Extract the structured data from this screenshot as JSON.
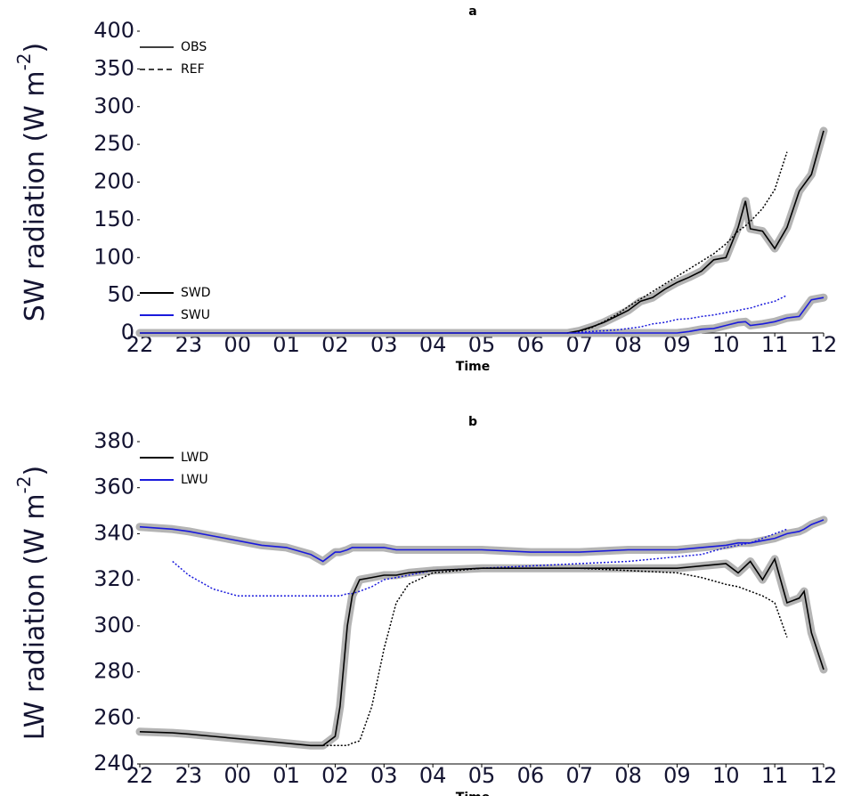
{
  "chart_data": [
    {
      "type": "line",
      "title": "a",
      "xlabel": "Time",
      "ylabel_parts": [
        "SW radiation (W m",
        "-2",
        ")"
      ],
      "x": [
        0,
        1,
        2,
        3,
        4,
        5,
        6,
        7,
        8,
        8.75,
        9,
        9.25,
        9.5,
        9.75,
        10,
        10.25,
        10.5,
        10.75,
        11,
        11.25,
        11.5,
        11.75,
        12,
        12.25,
        12.4,
        12.5,
        12.75,
        13,
        13.25,
        13.5,
        13.75,
        14
      ],
      "xlim": [
        0,
        14
      ],
      "xticks": [
        {
          "value": 0,
          "label": "22"
        },
        {
          "value": 1,
          "label": "23"
        },
        {
          "value": 2,
          "label": "00"
        },
        {
          "value": 3,
          "label": "01"
        },
        {
          "value": 4,
          "label": "02"
        },
        {
          "value": 5,
          "label": "03"
        },
        {
          "value": 6,
          "label": "04"
        },
        {
          "value": 7,
          "label": "05"
        },
        {
          "value": 8,
          "label": "06"
        },
        {
          "value": 9,
          "label": "07"
        },
        {
          "value": 10,
          "label": "08"
        },
        {
          "value": 11,
          "label": "09"
        },
        {
          "value": 12,
          "label": "10"
        },
        {
          "value": 13,
          "label": "11"
        },
        {
          "value": 14,
          "label": "12"
        }
      ],
      "ylim": [
        0,
        400
      ],
      "yticks": [
        0,
        50,
        100,
        150,
        200,
        250,
        300,
        350,
        400
      ],
      "line_styles": [
        "OBS",
        "REF"
      ],
      "line_styles_legend": "upper left",
      "legend": "lower left",
      "series": [
        {
          "name": "SWD",
          "color": "#000000",
          "values": [
            0,
            0,
            0,
            0,
            0,
            0,
            0,
            0,
            0,
            0,
            3,
            8,
            14,
            22,
            30,
            42,
            47,
            58,
            67,
            74,
            82,
            97,
            100,
            140,
            175,
            138,
            135,
            112,
            140,
            188,
            210,
            268
          ],
          "ref_values": [
            null,
            null,
            null,
            null,
            null,
            null,
            null,
            null,
            null,
            0,
            2,
            7,
            15,
            24,
            35,
            45,
            55,
            65,
            75,
            85,
            95,
            105,
            118,
            135,
            142,
            148,
            165,
            190,
            240,
            null,
            null,
            null
          ]
        },
        {
          "name": "SWU",
          "color": "#1a1adc",
          "values": [
            0,
            0,
            0,
            0,
            0,
            0,
            0,
            0,
            0,
            0,
            0,
            0,
            0,
            0,
            0,
            0,
            0,
            0,
            0,
            2,
            5,
            6,
            10,
            14,
            15,
            10,
            12,
            15,
            20,
            22,
            44,
            47
          ],
          "ref_values": [
            null,
            null,
            null,
            null,
            null,
            null,
            null,
            null,
            null,
            0,
            1,
            2,
            3,
            4,
            6,
            8,
            12,
            14,
            18,
            19,
            22,
            24,
            27,
            30,
            32,
            33,
            38,
            42,
            50,
            null,
            null,
            null
          ]
        }
      ]
    },
    {
      "type": "line",
      "title": "b",
      "xlabel": "Time",
      "ylabel_parts": [
        "LW radiation (W m",
        "-2",
        ")"
      ],
      "x": [
        0,
        0.67,
        1,
        1.5,
        2,
        2.5,
        3,
        3.5,
        3.75,
        4,
        4.1,
        4.25,
        4.35,
        4.5,
        4.75,
        5,
        5.25,
        5.5,
        6,
        7,
        8,
        9,
        10,
        11,
        11.5,
        12,
        12.25,
        12.5,
        12.75,
        13,
        13.25,
        13.5,
        13.6,
        13.75,
        14
      ],
      "xlim": [
        0,
        14
      ],
      "xticks": [
        {
          "value": 0,
          "label": "22"
        },
        {
          "value": 1,
          "label": "23"
        },
        {
          "value": 2,
          "label": "00"
        },
        {
          "value": 3,
          "label": "01"
        },
        {
          "value": 4,
          "label": "02"
        },
        {
          "value": 5,
          "label": "03"
        },
        {
          "value": 6,
          "label": "04"
        },
        {
          "value": 7,
          "label": "05"
        },
        {
          "value": 8,
          "label": "06"
        },
        {
          "value": 9,
          "label": "07"
        },
        {
          "value": 10,
          "label": "08"
        },
        {
          "value": 11,
          "label": "09"
        },
        {
          "value": 12,
          "label": "10"
        },
        {
          "value": 13,
          "label": "11"
        },
        {
          "value": 14,
          "label": "12"
        }
      ],
      "ylim": [
        240,
        380
      ],
      "yticks": [
        240,
        260,
        280,
        300,
        320,
        340,
        360,
        380
      ],
      "legend": "upper left",
      "series": [
        {
          "name": "LWD",
          "color": "#000000",
          "values": [
            254,
            253.5,
            253,
            252,
            251,
            250,
            249,
            248,
            248,
            252,
            265,
            300,
            313,
            320,
            321,
            322,
            322,
            323,
            324,
            325,
            325,
            325,
            325,
            325,
            326,
            327,
            323,
            328,
            320,
            329,
            310,
            312,
            315,
            297,
            281
          ],
          "ref_values": [
            null,
            null,
            null,
            null,
            null,
            null,
            null,
            null,
            248,
            248,
            248,
            248,
            249,
            250,
            265,
            290,
            310,
            318,
            323,
            325,
            325,
            325,
            324,
            323,
            321,
            318,
            317,
            315,
            313,
            310,
            295,
            null,
            null,
            null,
            null
          ]
        },
        {
          "name": "LWU",
          "color": "#1a1adc",
          "values": [
            343,
            342,
            341,
            339,
            337,
            335,
            334,
            331,
            328,
            332,
            332,
            333,
            334,
            334,
            334,
            334,
            333,
            333,
            333,
            333,
            332,
            332,
            333,
            333,
            334,
            335,
            336,
            336,
            337,
            338,
            340,
            341,
            342,
            344,
            346
          ],
          "ref_values": [
            null,
            328,
            322,
            316,
            313,
            313,
            313,
            313,
            313,
            313,
            313,
            314,
            314,
            315,
            317,
            320,
            321,
            322,
            324,
            325,
            326,
            327,
            328,
            330,
            331,
            334,
            335,
            336,
            338,
            340,
            342,
            null,
            null,
            null,
            null
          ]
        }
      ]
    }
  ]
}
